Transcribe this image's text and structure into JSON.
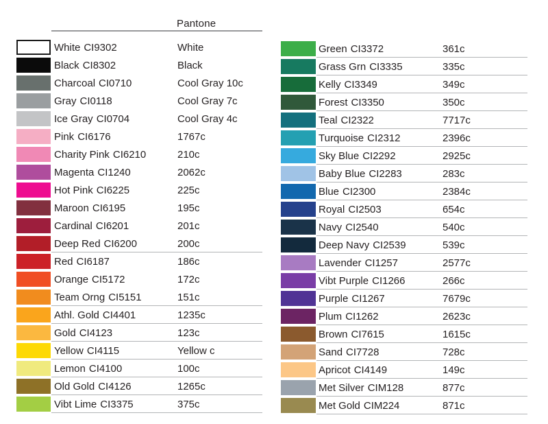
{
  "header": {
    "pantone_label": "Pantone"
  },
  "colors": {
    "text": "#231f20",
    "header_line": "#98999b",
    "row_divider": "#b2b4b6",
    "white_swatch_border": "#1a1a1a"
  },
  "left_column": {
    "rows": [
      {
        "name": "White",
        "code": "CI9302",
        "pantone": "White",
        "hex": "#ffffff",
        "underline": false
      },
      {
        "name": "Black",
        "code": "CI8302",
        "pantone": "Black",
        "hex": "#0b0b0b",
        "underline": false
      },
      {
        "name": "Charcoal",
        "code": "CI0710",
        "pantone": "Cool Gray 10c",
        "hex": "#68706d",
        "underline": false
      },
      {
        "name": "Gray",
        "code": "CI0118",
        "pantone": "Cool Gray 7c",
        "hex": "#9a9ea0",
        "underline": false
      },
      {
        "name": "Ice Gray",
        "code": "CI0704",
        "pantone": "Cool Gray 4c",
        "hex": "#c3c4c6",
        "underline": false
      },
      {
        "name": "Pink",
        "code": "CI6176",
        "pantone": "1767c",
        "hex": "#f5aec4",
        "underline": false
      },
      {
        "name": "Charity Pink",
        "code": "CI6210",
        "pantone": "210c",
        "hex": "#f089b5",
        "underline": false
      },
      {
        "name": "Magenta",
        "code": "CI1240",
        "pantone": "2062c",
        "hex": "#af4d9d",
        "underline": false
      },
      {
        "name": "Hot Pink",
        "code": "CI6225",
        "pantone": "225c",
        "hex": "#ee0d90",
        "underline": false
      },
      {
        "name": "Maroon",
        "code": "CI6195",
        "pantone": "195c",
        "hex": "#82303f",
        "underline": false
      },
      {
        "name": "Cardinal",
        "code": "CI6201",
        "pantone": "201c",
        "hex": "#9d1e3d",
        "underline": false
      },
      {
        "name": "Deep Red",
        "code": "CI6200",
        "pantone": "200c",
        "hex": "#b21e28",
        "underline": true
      },
      {
        "name": "Red",
        "code": "CI6187",
        "pantone": "186c",
        "hex": "#cc2127",
        "underline": false
      },
      {
        "name": "Orange",
        "code": "CI5172",
        "pantone": "172c",
        "hex": "#f04e23",
        "underline": false
      },
      {
        "name": "Team Orng",
        "code": "CI5151",
        "pantone": "151c",
        "hex": "#f18c1e",
        "underline": true
      },
      {
        "name": "Athl. Gold",
        "code": "CI4401",
        "pantone": "1235c",
        "hex": "#faa51c",
        "underline": true
      },
      {
        "name": "Gold",
        "code": "CI4123",
        "pantone": "123c",
        "hex": "#fbb840",
        "underline": true
      },
      {
        "name": "Yellow",
        "code": "CI4115",
        "pantone": "Yellow c",
        "hex": "#fdd905",
        "underline": true
      },
      {
        "name": "Lemon",
        "code": "CI4100",
        "pantone": "100c",
        "hex": "#f0ea7e",
        "underline": true
      },
      {
        "name": "Old Gold",
        "code": "CI4126",
        "pantone": "1265c",
        "hex": "#8e7127",
        "underline": true
      },
      {
        "name": "Vibt Lime",
        "code": "CI3375",
        "pantone": "375c",
        "hex": "#a3ce44",
        "underline": true
      }
    ]
  },
  "right_column": {
    "rows": [
      {
        "name": "Green",
        "code": "CI3372",
        "pantone": "361c",
        "hex": "#3cae49",
        "underline": true
      },
      {
        "name": "Grass Grn",
        "code": "CI3335",
        "pantone": "335c",
        "hex": "#177a60",
        "underline": true
      },
      {
        "name": "Kelly",
        "code": "CI3349",
        "pantone": "349c",
        "hex": "#176c3a",
        "underline": true
      },
      {
        "name": "Forest",
        "code": "CI3350",
        "pantone": "350c",
        "hex": "#30593a",
        "underline": true
      },
      {
        "name": "Teal",
        "code": "CI2322",
        "pantone": "7717c",
        "hex": "#14707e",
        "underline": true
      },
      {
        "name": "Turquoise",
        "code": "CI2312",
        "pantone": "2396c",
        "hex": "#24a0b2",
        "underline": true
      },
      {
        "name": "Sky Blue",
        "code": "CI2292",
        "pantone": "2925c",
        "hex": "#36aade",
        "underline": true
      },
      {
        "name": "Baby Blue",
        "code": "CI2283",
        "pantone": "283c",
        "hex": "#a0c3e6",
        "underline": true
      },
      {
        "name": "Blue",
        "code": "CI2300",
        "pantone": "2384c",
        "hex": "#1268ae",
        "underline": true
      },
      {
        "name": "Royal",
        "code": "CI2503",
        "pantone": "654c",
        "hex": "#25418c",
        "underline": true
      },
      {
        "name": "Navy",
        "code": "CI2540",
        "pantone": "540c",
        "hex": "#1a3349",
        "underline": true
      },
      {
        "name": "Deep Navy",
        "code": "CI2539",
        "pantone": "539c",
        "hex": "#132a3d",
        "underline": true
      },
      {
        "name": "Lavender",
        "code": "CI1257",
        "pantone": "2577c",
        "hex": "#a87bc2",
        "underline": true
      },
      {
        "name": "Vibt Purple",
        "code": "CI1266",
        "pantone": "266c",
        "hex": "#7a3da6",
        "underline": true
      },
      {
        "name": "Purple",
        "code": "CI1267",
        "pantone": "7679c",
        "hex": "#503395",
        "underline": true
      },
      {
        "name": "Plum",
        "code": "CI1262",
        "pantone": "2623c",
        "hex": "#6c2463",
        "underline": true
      },
      {
        "name": "Brown",
        "code": "CI7615",
        "pantone": "1615c",
        "hex": "#8b5a2e",
        "underline": true
      },
      {
        "name": "Sand",
        "code": "CI7728",
        "pantone": "728c",
        "hex": "#d3a377",
        "underline": true
      },
      {
        "name": "Apricot",
        "code": "CI4149",
        "pantone": "149c",
        "hex": "#fcc787",
        "underline": true
      },
      {
        "name": "Met Silver",
        "code": "CIM128",
        "pantone": "877c",
        "hex": "#9aa3ad",
        "underline": true
      },
      {
        "name": "Met Gold",
        "code": "CIM224",
        "pantone": "871c",
        "hex": "#998a50",
        "underline": true
      }
    ]
  }
}
